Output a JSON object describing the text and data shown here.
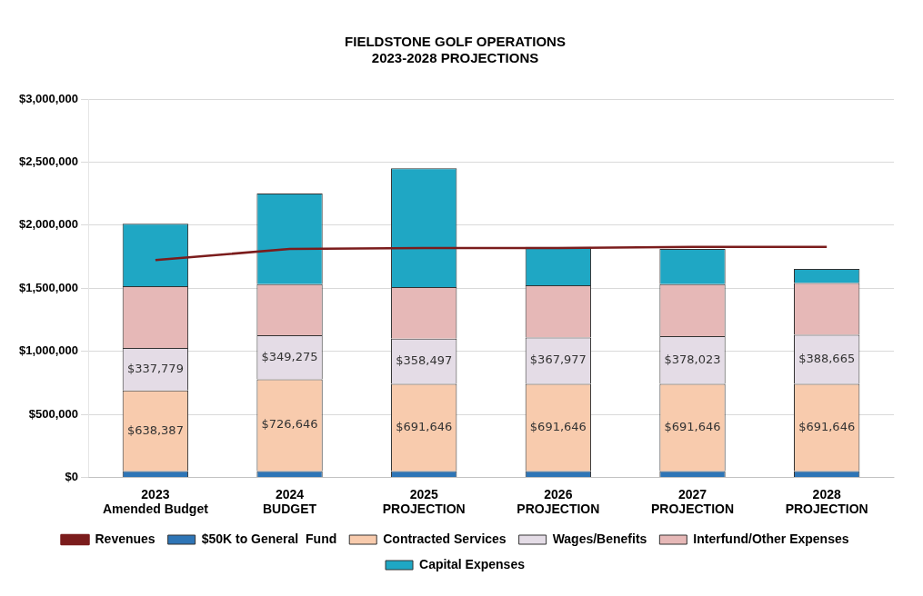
{
  "chart_data": {
    "type": "bar",
    "title": "FIELDSTONE GOLF OPERATIONS\n2023-2028 PROJECTIONS",
    "stacked": true,
    "categories": [
      "2023\nAmended Budget",
      "2024\nBUDGET",
      "2025\nPROJECTION",
      "2026\nPROJECTION",
      "2027\nPROJECTION",
      "2028\nPROJECTION"
    ],
    "series": [
      {
        "name": "$50K to General  Fund",
        "color": "#2e75b6",
        "values": [
          50000,
          50000,
          50000,
          50000,
          50000,
          50000
        ]
      },
      {
        "name": "Contracted Services",
        "color": "#f8cbad",
        "values": [
          638387,
          726646,
          691646,
          691646,
          691646,
          691646
        ],
        "value_labels": [
          "$638,387",
          "$726,646",
          "$691,646",
          "$691,646",
          "$691,646",
          "$691,646"
        ]
      },
      {
        "name": "Wages/Benefits",
        "color": "#e4dce6",
        "values": [
          337779,
          349275,
          358497,
          367977,
          378023,
          388665
        ],
        "value_labels": [
          "$337,779",
          "$349,275",
          "$358,497",
          "$367,977",
          "$378,023",
          "$388,665"
        ]
      },
      {
        "name": "Interfund/Other Expenses",
        "color": "#e6b8b7",
        "values": [
          490000,
          406000,
          408000,
          414000,
          412000,
          410000
        ]
      },
      {
        "name": "Capital Expenses",
        "color": "#1fa7c4",
        "values": [
          495000,
          718000,
          942000,
          303000,
          279000,
          112000
        ]
      },
      {
        "name": "Revenues",
        "type": "line",
        "color": "#7b1c1c",
        "values": [
          1723000,
          1811000,
          1819000,
          1819000,
          1827000,
          1827000
        ]
      }
    ],
    "ylim": [
      0,
      3000000
    ],
    "yticks": [
      {
        "value": 0,
        "label": "$0"
      },
      {
        "value": 500000,
        "label": "$500,000"
      },
      {
        "value": 1000000,
        "label": "$1,000,000"
      },
      {
        "value": 1500000,
        "label": "$1,500,000"
      },
      {
        "value": 2000000,
        "label": "$2,000,000"
      },
      {
        "value": 2500000,
        "label": "$2,500,000"
      },
      {
        "value": 3000000,
        "label": "$3,000,000"
      }
    ],
    "grid": "y",
    "legend": "bottom",
    "marker": "none"
  }
}
